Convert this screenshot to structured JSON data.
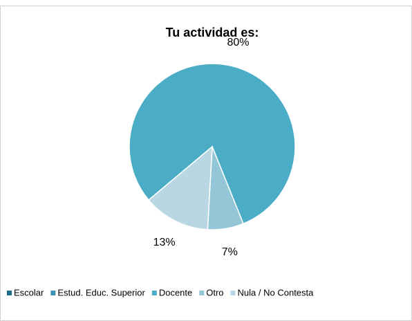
{
  "chart_data": {
    "type": "pie",
    "title": "Tu actividad es:",
    "categories": [
      "Escolar",
      "Estud. Educ. Superior",
      "Docente",
      "Otro",
      "Nula / No Contesta"
    ],
    "values": [
      0,
      0,
      80,
      7,
      13
    ],
    "value_labels": [
      null,
      null,
      "80%",
      "7%",
      "13%"
    ],
    "colors": [
      "#1f6e8c",
      "#3a93b0",
      "#4bacc6",
      "#93c6d6",
      "#b8d7e2"
    ],
    "start_angle": 230,
    "legend": "bottom"
  }
}
